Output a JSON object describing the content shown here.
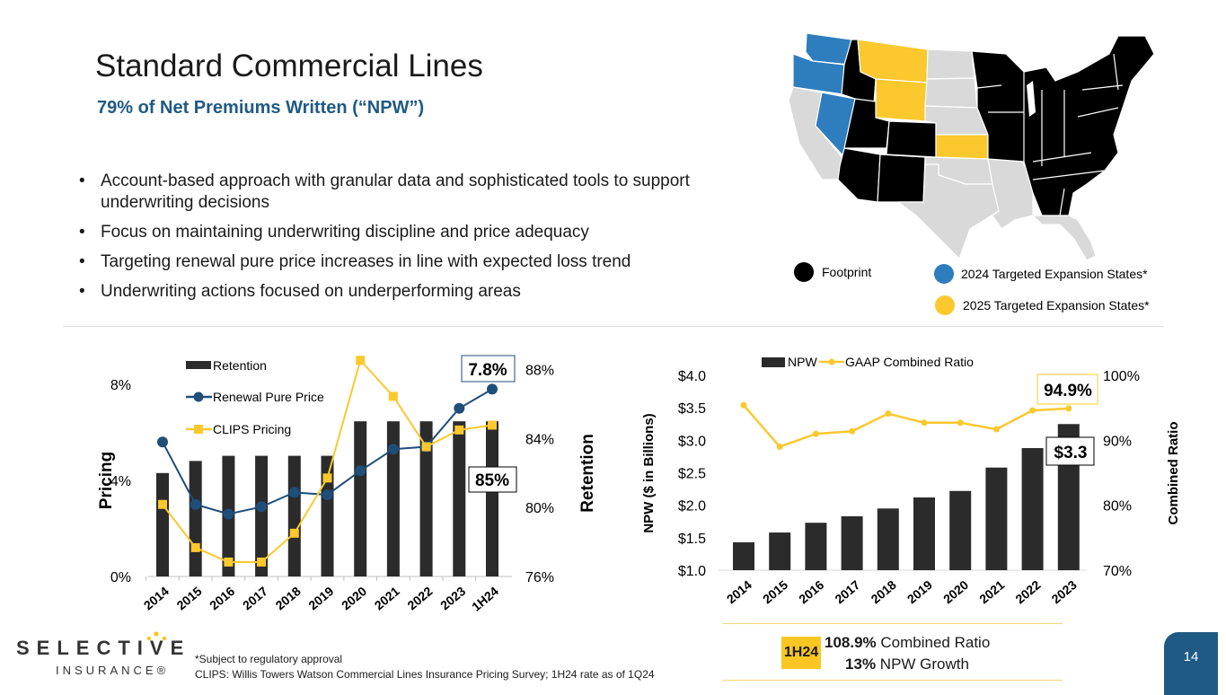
{
  "header": {
    "title": "Standard Commercial Lines",
    "subtitle": "79% of Net Premiums Written (“NPW”)"
  },
  "bullets": [
    "Account-based approach with granular data and sophisticated tools to support underwriting decisions",
    "Focus on maintaining underwriting discipline and price adequacy",
    "Targeting renewal pure price increases in line with expected loss trend",
    "Underwriting actions focused on underperforming areas"
  ],
  "bullet_glyph": "•",
  "map": {
    "legend": [
      {
        "label": "Footprint",
        "color": "#000000"
      },
      {
        "label": "2024 Targeted Expansion States*",
        "color": "#2e7dbf"
      },
      {
        "label": "2025 Targeted Expansion States*",
        "color": "#fbc82e"
      }
    ],
    "colors": {
      "footprint": "#000000",
      "exp2024": "#2e7dbf",
      "exp2025": "#fbc82e",
      "other": "#d9d9d9"
    }
  },
  "chart_data": [
    {
      "type": "bar",
      "title": "",
      "categories": [
        "2014",
        "2015",
        "2016",
        "2017",
        "2018",
        "2019",
        "2020",
        "2021",
        "2022",
        "2023",
        "1H24"
      ],
      "ylabel": "Pricing",
      "y2label": "Retention",
      "yticks": [
        "0%",
        "4%",
        "8%"
      ],
      "y2ticks": [
        "76%",
        "80%",
        "84%",
        "88%"
      ],
      "ylim": [
        0,
        8.6
      ],
      "y2lim": [
        76,
        88
      ],
      "series": [
        {
          "name": "Retention",
          "type": "bar",
          "axis": "right",
          "color": "#2b2b2b",
          "values": [
            82.0,
            82.7,
            83,
            83,
            83,
            83,
            85,
            85,
            85,
            85,
            85
          ]
        },
        {
          "name": "Renewal Pure Price",
          "type": "line",
          "axis": "left",
          "color": "#1f4e79",
          "values": [
            5.6,
            3.0,
            2.6,
            2.9,
            3.5,
            3.4,
            4.4,
            5.3,
            5.4,
            7.0,
            7.8
          ]
        },
        {
          "name": "CLIPS Pricing",
          "type": "line",
          "axis": "left",
          "color": "#fbc82e",
          "values": [
            3.0,
            1.2,
            0.6,
            0.6,
            1.8,
            4.1,
            9.0,
            7.5,
            5.4,
            6.1,
            6.3
          ]
        }
      ],
      "annotations": [
        {
          "text": "7.8%",
          "series": "Renewal Pure Price"
        },
        {
          "text": "85%",
          "series": "Retention"
        }
      ],
      "legend": "top-left"
    },
    {
      "type": "bar",
      "title": "",
      "categories": [
        "2014",
        "2015",
        "2016",
        "2017",
        "2018",
        "2019",
        "2020",
        "2021",
        "2022",
        "2023"
      ],
      "ylabel": "NPW ($ in Billions)",
      "y2label": "Combined Ratio",
      "yticks": [
        "$1.0",
        "$1.5",
        "$2.0",
        "$2.5",
        "$3.0",
        "$3.5",
        "$4.0"
      ],
      "y2ticks": [
        "70%",
        "80%",
        "90%",
        "100%"
      ],
      "ylim": [
        1.0,
        4.0
      ],
      "y2lim": [
        70,
        100
      ],
      "series": [
        {
          "name": "NPW",
          "type": "bar",
          "axis": "left",
          "color": "#2b2b2b",
          "values": [
            1.43,
            1.58,
            1.73,
            1.83,
            1.95,
            2.12,
            2.22,
            2.58,
            2.88,
            3.25
          ]
        },
        {
          "name": "GAAP Combined Ratio",
          "type": "line",
          "axis": "right",
          "color": "#fbc82e",
          "values": [
            95.4,
            89.0,
            91.0,
            91.4,
            94.1,
            92.7,
            92.7,
            91.7,
            94.6,
            94.9
          ]
        }
      ],
      "annotations": [
        {
          "text": "94.9%",
          "series": "GAAP Combined Ratio"
        },
        {
          "text": "$3.3",
          "series": "NPW"
        }
      ],
      "legend": "top"
    }
  ],
  "insight": {
    "badge": "1H24",
    "ratio_value": "108.9%",
    "ratio_label": " Combined Ratio",
    "growth_value": "13%",
    "growth_label": " NPW Growth"
  },
  "footer": {
    "logo_word": "SELECTIVE",
    "logo_sub": "INSURANCE®",
    "note1": "*Subject to regulatory approval",
    "note2": "CLIPS: Willis Towers Watson Commercial Lines Insurance Pricing Survey; 1H24 rate as of 1Q24",
    "page_number": "14"
  }
}
